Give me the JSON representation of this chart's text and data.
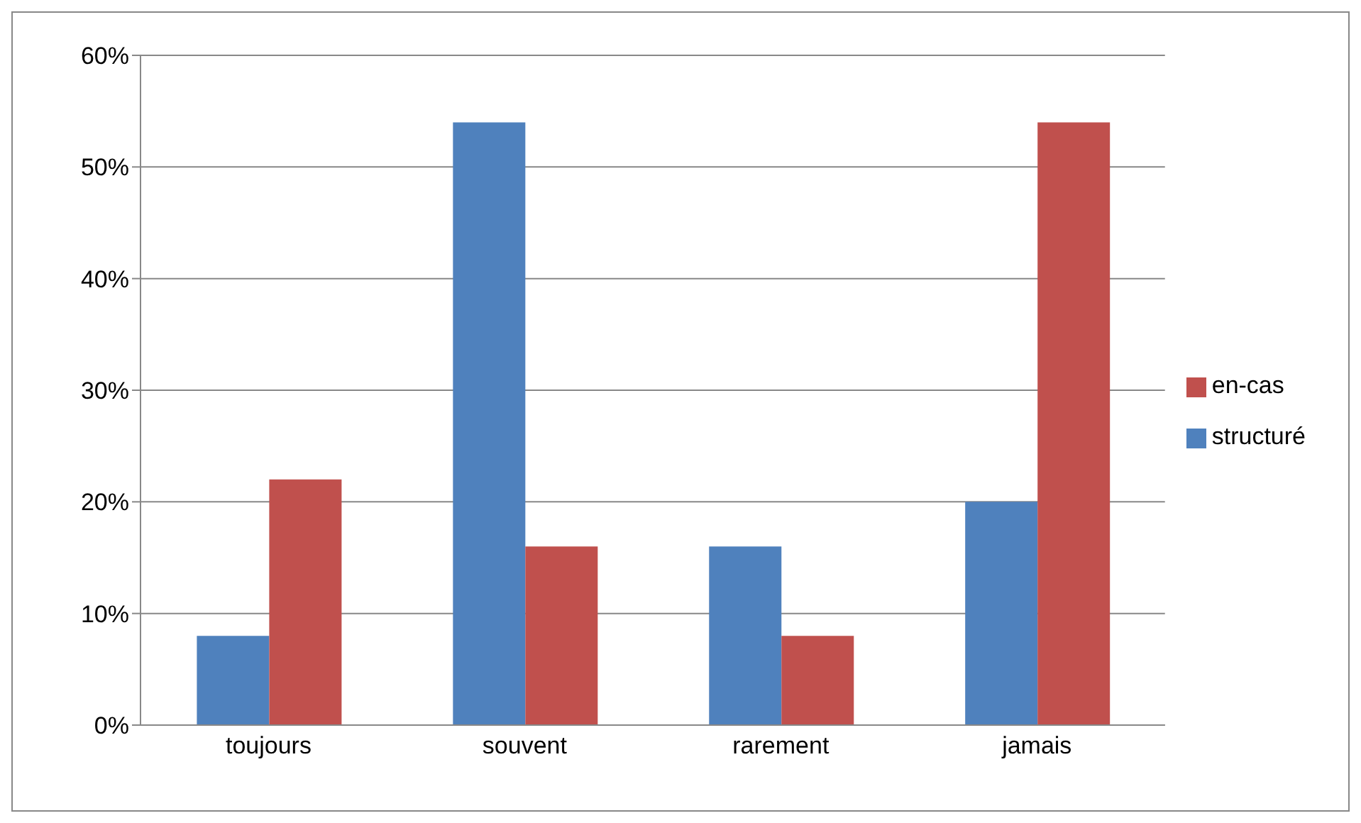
{
  "chart_data": {
    "type": "bar",
    "categories": [
      "toujours",
      "souvent",
      "rarement",
      "jamais"
    ],
    "series": [
      {
        "name": "structuré",
        "color": "#4f81bd",
        "values": [
          8,
          54,
          16,
          20
        ]
      },
      {
        "name": "en-cas",
        "color": "#c0504d",
        "values": [
          22,
          16,
          8,
          54
        ]
      }
    ],
    "ylim": [
      0,
      60
    ],
    "yticks": [
      {
        "value": 0,
        "label": "0%"
      },
      {
        "value": 10,
        "label": "10%"
      },
      {
        "value": 20,
        "label": "20%"
      },
      {
        "value": 30,
        "label": "30%"
      },
      {
        "value": 40,
        "label": "40%"
      },
      {
        "value": 50,
        "label": "50%"
      },
      {
        "value": 60,
        "label": "60%"
      }
    ],
    "grid": "y",
    "legend": "right"
  }
}
